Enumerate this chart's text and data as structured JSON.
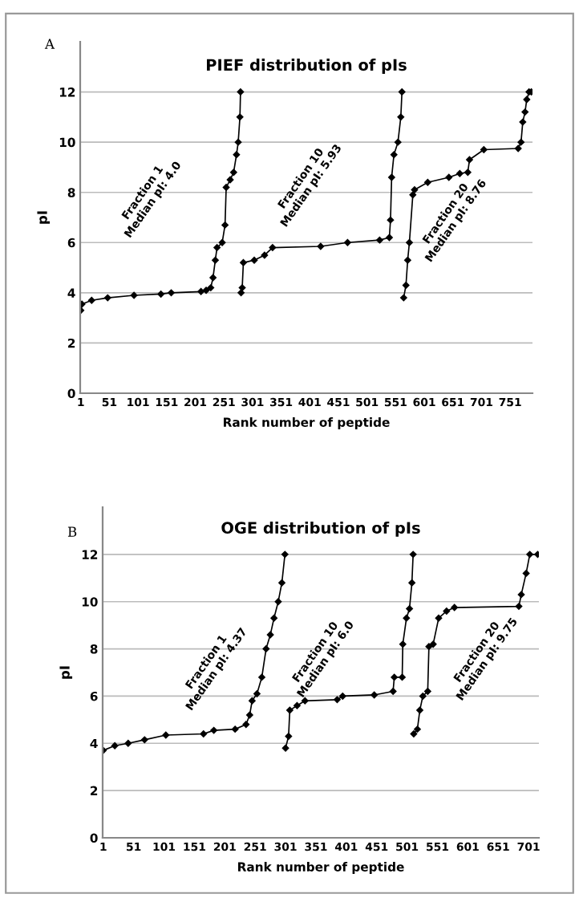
{
  "chart_data": [
    {
      "type": "line",
      "title": "PIEF distribution of pIs",
      "xlabel": "Rank number of peptide",
      "ylabel": "pI",
      "xlim": [
        0,
        790
      ],
      "xticks": [
        1,
        51,
        101,
        151,
        201,
        251,
        301,
        351,
        401,
        451,
        501,
        551,
        601,
        651,
        701,
        751
      ],
      "ylim": [
        0,
        14
      ],
      "yticks": [
        0,
        2,
        4,
        6,
        8,
        10,
        12
      ],
      "grid": "y",
      "marker": "diamond",
      "line_style": "solid",
      "legend": false,
      "series": [
        {
          "color": "#000000",
          "x": [
            1,
            3,
            20,
            48,
            94,
            141,
            159,
            211,
            220,
            228,
            232,
            236,
            239,
            248,
            253,
            255,
            262,
            268,
            273,
            276,
            279,
            280
          ],
          "values": [
            3.3,
            3.55,
            3.7,
            3.8,
            3.9,
            3.95,
            4.0,
            4.05,
            4.1,
            4.2,
            4.6,
            5.3,
            5.8,
            6.0,
            6.7,
            8.2,
            8.5,
            8.8,
            9.5,
            10.0,
            11.0,
            12.0
          ]
        },
        {
          "color": "#000000",
          "x": [
            281,
            283,
            285,
            304,
            322,
            336,
            420,
            467,
            523,
            540,
            542,
            544,
            548,
            555,
            560,
            562
          ],
          "values": [
            4.0,
            4.2,
            5.2,
            5.3,
            5.5,
            5.8,
            5.85,
            6.0,
            6.1,
            6.2,
            6.9,
            8.6,
            9.5,
            10.0,
            11.0,
            12.0
          ]
        },
        {
          "color": "#000000",
          "x": [
            565,
            569,
            572,
            575,
            581,
            584,
            607,
            644,
            663,
            677,
            680,
            705,
            765,
            770,
            773,
            777,
            780,
            784,
            788
          ],
          "values": [
            3.8,
            4.3,
            5.3,
            6.0,
            7.9,
            8.1,
            8.4,
            8.6,
            8.75,
            8.8,
            9.3,
            9.7,
            9.75,
            10.0,
            10.8,
            11.2,
            11.7,
            12.0,
            12.0
          ]
        }
      ],
      "annotations": [
        "A",
        "Fraction 1\nMedian pI: 4.0",
        "Fraction 10\nMedian pI: 5.93",
        "Fraction 20\nMedian pI: 8.76"
      ]
    },
    {
      "type": "line",
      "title": "OGE distribution of pIs",
      "xlabel": "Rank number of peptide",
      "ylabel": "pI",
      "xlim": [
        0,
        718
      ],
      "xticks": [
        1,
        51,
        101,
        151,
        201,
        251,
        301,
        351,
        401,
        451,
        501,
        551,
        601,
        651,
        701
      ],
      "ylim": [
        0,
        14
      ],
      "yticks": [
        0,
        2,
        4,
        6,
        8,
        10,
        12
      ],
      "grid": "y",
      "marker": "diamond",
      "line_style": "solid",
      "legend": false,
      "series": [
        {
          "color": "#000000",
          "x": [
            1,
            20,
            42,
            69,
            104,
            166,
            183,
            218,
            236,
            242,
            246,
            254,
            262,
            269,
            276,
            282,
            289,
            295,
            300
          ],
          "values": [
            3.7,
            3.9,
            4.0,
            4.15,
            4.35,
            4.4,
            4.55,
            4.6,
            4.8,
            5.2,
            5.8,
            6.1,
            6.8,
            8.0,
            8.6,
            9.3,
            10.0,
            10.8,
            12.0
          ]
        },
        {
          "color": "#000000",
          "x": [
            301,
            306,
            308,
            320,
            333,
            386,
            395,
            447,
            478,
            480,
            493,
            494,
            500,
            505,
            509,
            511
          ],
          "values": [
            3.8,
            4.3,
            5.4,
            5.6,
            5.8,
            5.85,
            6.0,
            6.05,
            6.2,
            6.8,
            6.8,
            8.2,
            9.3,
            9.7,
            10.8,
            12.0
          ]
        },
        {
          "color": "#000000",
          "x": [
            512,
            518,
            522,
            527,
            535,
            537,
            544,
            553,
            566,
            579,
            685,
            689,
            697,
            703,
            716
          ],
          "values": [
            4.4,
            4.6,
            5.4,
            6.0,
            6.2,
            8.1,
            8.2,
            9.3,
            9.6,
            9.75,
            9.8,
            10.3,
            11.2,
            12.0,
            12.0
          ]
        }
      ],
      "annotations": [
        "B",
        "Fraction 1\nMedian pI: 4.37",
        "Fraction 10\nMedian pI: 6.0",
        "Fraction 20\nMedian pI: 9.75"
      ]
    }
  ]
}
